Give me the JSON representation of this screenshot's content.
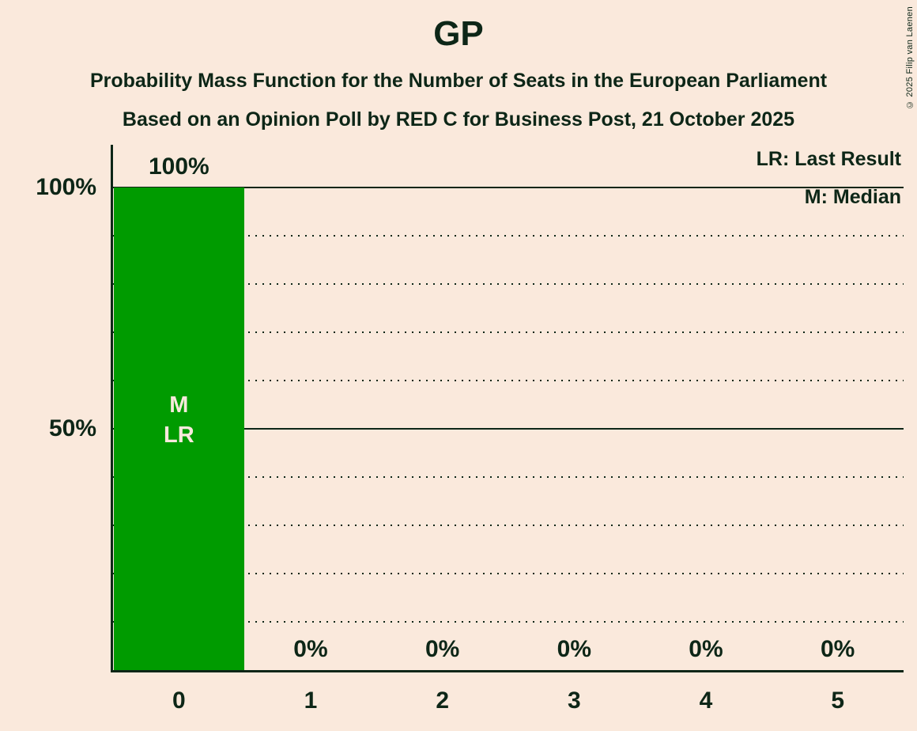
{
  "title": "GP",
  "subtitle": "Probability Mass Function for the Number of Seats in the European Parliament",
  "source_line": "Based on an Opinion Poll by RED C for Business Post, 21 October 2025",
  "copyright": "© 2025 Filip van Laenen",
  "legend": {
    "lr": "LR: Last Result",
    "m": "M: Median"
  },
  "colors": {
    "background": "#fae9dc",
    "text": "#0d2617",
    "bar": "#009b00",
    "bar_label": "#fae9dc"
  },
  "chart_data": {
    "type": "bar",
    "title": "GP",
    "categories": [
      "0",
      "1",
      "2",
      "3",
      "4",
      "5"
    ],
    "values": [
      100,
      0,
      0,
      0,
      0,
      0
    ],
    "value_labels": [
      "100%",
      "0%",
      "0%",
      "0%",
      "0%",
      "0%"
    ],
    "xlabel": "",
    "ylabel": "",
    "ylim": [
      0,
      100
    ],
    "yticks": [
      {
        "value": 100,
        "label": "100%"
      },
      {
        "value": 50,
        "label": "50%"
      }
    ],
    "gridlines": {
      "solid": [
        100,
        50
      ],
      "dotted": [
        90,
        80,
        70,
        60,
        40,
        30,
        20,
        10
      ]
    },
    "grid": true,
    "legend_position": "top-right",
    "legend_entries": [
      "LR: Last Result",
      "M: Median"
    ],
    "bar_markers": [
      {
        "bar": 0,
        "labels": [
          "M",
          "LR"
        ]
      }
    ],
    "median_seats": 0,
    "last_result_seats": 0
  }
}
